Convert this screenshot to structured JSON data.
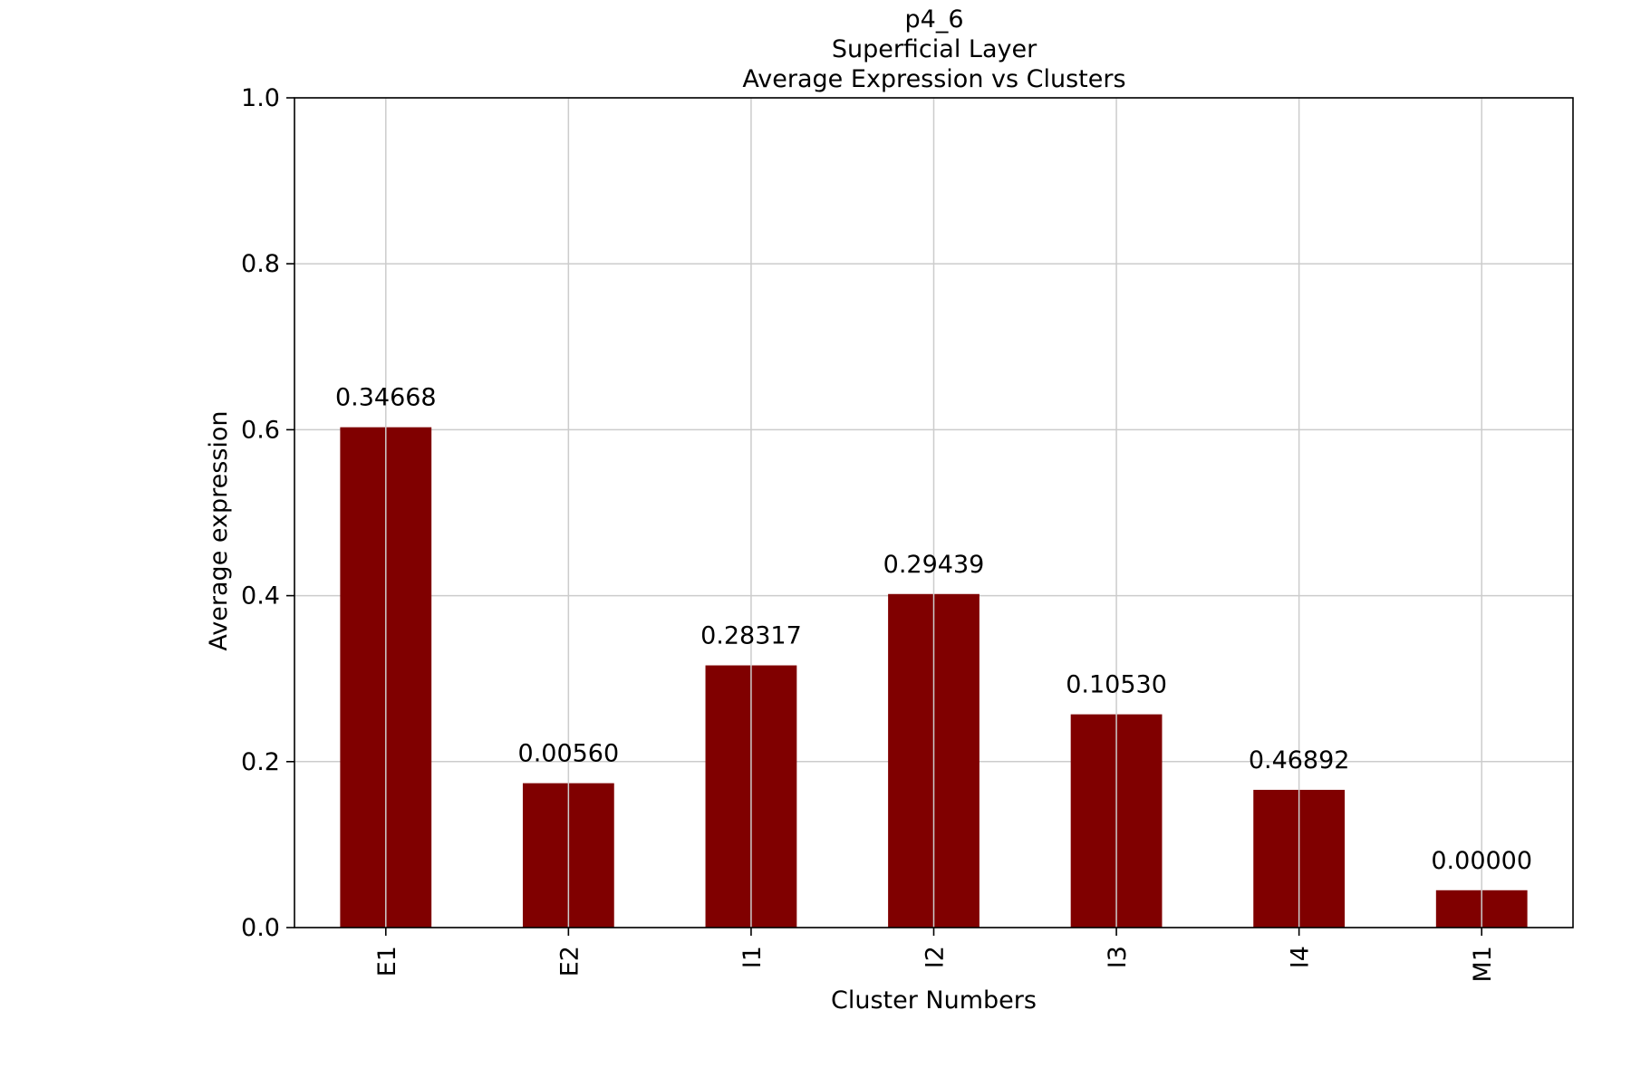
{
  "chart_data": {
    "type": "bar",
    "title_lines": [
      "p4_6",
      "Superficial Layer",
      "Average Expression vs Clusters"
    ],
    "xlabel": "Cluster Numbers",
    "ylabel": "Average expression",
    "categories": [
      "E1",
      "E2",
      "I1",
      "I2",
      "I3",
      "I4",
      "M1"
    ],
    "values": [
      0.603,
      0.174,
      0.316,
      0.402,
      0.257,
      0.166,
      0.045
    ],
    "data_labels": [
      "0.34668",
      "0.00560",
      "0.28317",
      "0.29439",
      "0.10530",
      "0.46892",
      "0.00000"
    ],
    "ylim": [
      0,
      1.0
    ],
    "yticks": [
      "0.0",
      "0.2",
      "0.4",
      "0.6",
      "0.8",
      "1.0"
    ],
    "grid": true,
    "bar_color": "#800000",
    "grid_color": "#cccccc"
  }
}
